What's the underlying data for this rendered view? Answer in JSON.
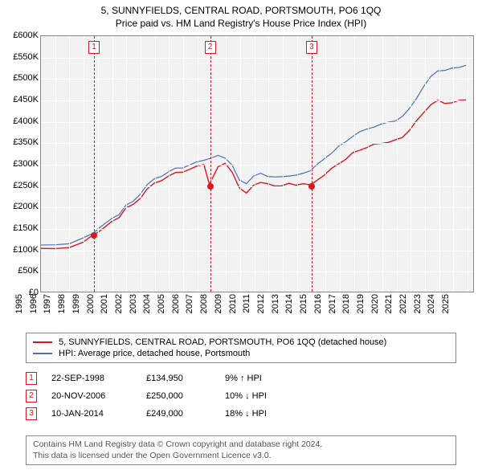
{
  "title_line1": "5, SUNNYFIELDS, CENTRAL ROAD, PORTSMOUTH, PO6 1QQ",
  "title_line2": "Price paid vs. HM Land Registry's House Price Index (HPI)",
  "chart": {
    "type": "line",
    "background_color": "#f2f2f2",
    "grid_color": "#ffffff",
    "border_color": "#888888",
    "x_range": [
      1995,
      2025.5
    ],
    "y_range": [
      0,
      600000
    ],
    "y_tick_step": 50000,
    "y_tick_labels": [
      "£0",
      "£50K",
      "£100K",
      "£150K",
      "£200K",
      "£250K",
      "£300K",
      "£350K",
      "£400K",
      "£450K",
      "£500K",
      "£550K",
      "£600K"
    ],
    "x_ticks": [
      1995,
      1996,
      1997,
      1998,
      1999,
      2000,
      2001,
      2002,
      2003,
      2004,
      2005,
      2006,
      2007,
      2008,
      2009,
      2010,
      2011,
      2012,
      2013,
      2014,
      2015,
      2016,
      2017,
      2018,
      2019,
      2020,
      2021,
      2022,
      2023,
      2024,
      2025
    ],
    "series": [
      {
        "name": "property",
        "label": "5, SUNNYFIELDS, CENTRAL ROAD, PORTSMOUTH, PO6 1QQ (detached house)",
        "color": "#d8171f",
        "line_width": 1.4,
        "points": [
          [
            1995,
            100000
          ],
          [
            1996,
            101000
          ],
          [
            1997,
            105000
          ],
          [
            1998,
            115000
          ],
          [
            1998.73,
            134950
          ],
          [
            1999,
            140000
          ],
          [
            1999.5,
            150000
          ],
          [
            2000,
            165000
          ],
          [
            2000.5,
            175000
          ],
          [
            2001,
            195000
          ],
          [
            2001.5,
            205000
          ],
          [
            2002,
            220000
          ],
          [
            2002.5,
            240000
          ],
          [
            2003,
            255000
          ],
          [
            2003.5,
            262000
          ],
          [
            2004,
            270000
          ],
          [
            2004.5,
            280000
          ],
          [
            2005,
            282000
          ],
          [
            2005.5,
            286000
          ],
          [
            2006,
            295000
          ],
          [
            2006.5,
            300000
          ],
          [
            2006.89,
            250000
          ],
          [
            2007,
            260000
          ],
          [
            2007.5,
            295000
          ],
          [
            2008,
            300000
          ],
          [
            2008.5,
            280000
          ],
          [
            2009,
            245000
          ],
          [
            2009.5,
            230000
          ],
          [
            2010,
            250000
          ],
          [
            2010.5,
            258000
          ],
          [
            2011,
            252000
          ],
          [
            2011.5,
            248000
          ],
          [
            2012,
            250000
          ],
          [
            2012.5,
            253000
          ],
          [
            2013,
            250000
          ],
          [
            2013.5,
            255000
          ],
          [
            2014.03,
            249000
          ],
          [
            2014.5,
            262000
          ],
          [
            2015,
            275000
          ],
          [
            2015.5,
            288000
          ],
          [
            2016,
            300000
          ],
          [
            2016.5,
            312000
          ],
          [
            2017,
            325000
          ],
          [
            2017.5,
            332000
          ],
          [
            2018,
            340000
          ],
          [
            2018.5,
            345000
          ],
          [
            2019,
            348000
          ],
          [
            2019.5,
            352000
          ],
          [
            2020,
            355000
          ],
          [
            2020.5,
            362000
          ],
          [
            2021,
            380000
          ],
          [
            2021.5,
            400000
          ],
          [
            2022,
            420000
          ],
          [
            2022.5,
            440000
          ],
          [
            2023,
            448000
          ],
          [
            2023.5,
            442000
          ],
          [
            2024,
            445000
          ],
          [
            2024.5,
            448000
          ],
          [
            2025,
            450000
          ]
        ]
      },
      {
        "name": "hpi",
        "label": "HPI: Average price, detached house, Portsmouth",
        "color": "#4a6fb5",
        "line_width": 1.2,
        "points": [
          [
            1995,
            108000
          ],
          [
            1996,
            110000
          ],
          [
            1997,
            114000
          ],
          [
            1998,
            125000
          ],
          [
            1998.73,
            138000
          ],
          [
            1999,
            148000
          ],
          [
            1999.5,
            158000
          ],
          [
            2000,
            172000
          ],
          [
            2000.5,
            182000
          ],
          [
            2001,
            202000
          ],
          [
            2001.5,
            212000
          ],
          [
            2002,
            230000
          ],
          [
            2002.5,
            250000
          ],
          [
            2003,
            265000
          ],
          [
            2003.5,
            272000
          ],
          [
            2004,
            280000
          ],
          [
            2004.5,
            290000
          ],
          [
            2005,
            292000
          ],
          [
            2005.5,
            296000
          ],
          [
            2006,
            305000
          ],
          [
            2006.5,
            310000
          ],
          [
            2007,
            312000
          ],
          [
            2007.5,
            320000
          ],
          [
            2008,
            315000
          ],
          [
            2008.5,
            295000
          ],
          [
            2009,
            262000
          ],
          [
            2009.5,
            255000
          ],
          [
            2010,
            270000
          ],
          [
            2010.5,
            278000
          ],
          [
            2011,
            272000
          ],
          [
            2011.5,
            268000
          ],
          [
            2012,
            270000
          ],
          [
            2012.5,
            273000
          ],
          [
            2013,
            272000
          ],
          [
            2013.5,
            278000
          ],
          [
            2014,
            285000
          ],
          [
            2014.5,
            298000
          ],
          [
            2015,
            312000
          ],
          [
            2015.5,
            326000
          ],
          [
            2016,
            340000
          ],
          [
            2016.5,
            352000
          ],
          [
            2017,
            366000
          ],
          [
            2017.5,
            374000
          ],
          [
            2018,
            382000
          ],
          [
            2018.5,
            388000
          ],
          [
            2019,
            392000
          ],
          [
            2019.5,
            398000
          ],
          [
            2020,
            402000
          ],
          [
            2020.5,
            410000
          ],
          [
            2021,
            430000
          ],
          [
            2021.5,
            455000
          ],
          [
            2022,
            480000
          ],
          [
            2022.5,
            505000
          ],
          [
            2023,
            520000
          ],
          [
            2023.5,
            518000
          ],
          [
            2024,
            525000
          ],
          [
            2024.5,
            528000
          ],
          [
            2025,
            530000
          ]
        ]
      }
    ],
    "sale_markers": [
      {
        "n": "1",
        "x": 1998.73,
        "y": 134950,
        "color": "#d8171f"
      },
      {
        "n": "2",
        "x": 2006.89,
        "y": 250000,
        "color": "#d8171f"
      },
      {
        "n": "3",
        "x": 2014.03,
        "y": 249000,
        "color": "#d8171f"
      }
    ]
  },
  "legend": {
    "items": [
      {
        "color": "#d8171f",
        "text": "5, SUNNYFIELDS, CENTRAL ROAD, PORTSMOUTH, PO6 1QQ (detached house)"
      },
      {
        "color": "#4a6fb5",
        "text": "HPI: Average price, detached house, Portsmouth"
      }
    ]
  },
  "sales_table": {
    "rows": [
      {
        "n": "1",
        "color": "#d8171f",
        "date": "22-SEP-1998",
        "price": "£134,950",
        "hpi": "9% ↑ HPI"
      },
      {
        "n": "2",
        "color": "#d8171f",
        "date": "20-NOV-2006",
        "price": "£250,000",
        "hpi": "10% ↓ HPI"
      },
      {
        "n": "3",
        "color": "#d8171f",
        "date": "10-JAN-2014",
        "price": "£249,000",
        "hpi": "18% ↓ HPI"
      }
    ]
  },
  "footer": {
    "line1": "Contains HM Land Registry data © Crown copyright and database right 2024.",
    "line2": "This data is licensed under the Open Government Licence v3.0."
  }
}
